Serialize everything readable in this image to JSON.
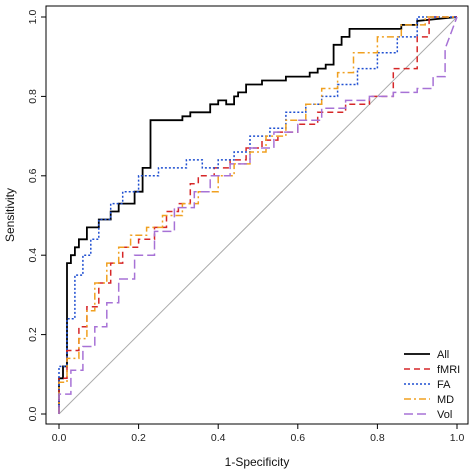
{
  "chart_data": {
    "type": "line",
    "title": "",
    "xlabel": "1-Specificity",
    "ylabel": "Sensitivity",
    "xlim": [
      0.0,
      1.0
    ],
    "ylim": [
      0.0,
      1.0
    ],
    "xticks": [
      "0.0",
      "0.2",
      "0.4",
      "0.6",
      "0.8",
      "1.0"
    ],
    "yticks": [
      "0.0",
      "0.2",
      "0.4",
      "0.6",
      "0.8",
      "1.0"
    ],
    "grid": false,
    "legend_position": "bottom-right",
    "reference_line": {
      "x": [
        0,
        1
      ],
      "y": [
        0,
        1
      ],
      "color": "#aaaaaa"
    },
    "series": [
      {
        "name": "All",
        "color": "#000000",
        "dash": "solid",
        "x": [
          0.0,
          0.0,
          0.01,
          0.01,
          0.02,
          0.02,
          0.03,
          0.03,
          0.04,
          0.04,
          0.05,
          0.05,
          0.07,
          0.07,
          0.1,
          0.1,
          0.13,
          0.13,
          0.15,
          0.15,
          0.19,
          0.19,
          0.21,
          0.21,
          0.23,
          0.23,
          0.31,
          0.31,
          0.33,
          0.33,
          0.38,
          0.38,
          0.4,
          0.4,
          0.42,
          0.42,
          0.44,
          0.44,
          0.45,
          0.45,
          0.47,
          0.47,
          0.51,
          0.51,
          0.57,
          0.57,
          0.63,
          0.63,
          0.65,
          0.65,
          0.67,
          0.67,
          0.69,
          0.69,
          0.71,
          0.71,
          0.73,
          0.73,
          0.77,
          0.77,
          0.86,
          0.86,
          0.9,
          0.9,
          1.0
        ],
        "y": [
          0.0,
          0.09,
          0.09,
          0.12,
          0.12,
          0.38,
          0.38,
          0.4,
          0.4,
          0.42,
          0.42,
          0.44,
          0.44,
          0.47,
          0.47,
          0.49,
          0.49,
          0.51,
          0.51,
          0.53,
          0.53,
          0.56,
          0.56,
          0.62,
          0.62,
          0.74,
          0.74,
          0.75,
          0.75,
          0.76,
          0.76,
          0.78,
          0.78,
          0.79,
          0.79,
          0.78,
          0.78,
          0.8,
          0.8,
          0.81,
          0.81,
          0.83,
          0.83,
          0.84,
          0.84,
          0.85,
          0.85,
          0.86,
          0.86,
          0.87,
          0.87,
          0.88,
          0.88,
          0.93,
          0.93,
          0.95,
          0.95,
          0.97,
          0.97,
          0.97,
          0.97,
          0.98,
          0.98,
          0.99,
          1.0
        ]
      },
      {
        "name": "fMRI",
        "color": "#d62728",
        "dash": "6,4",
        "x": [
          0.0,
          0.0,
          0.02,
          0.02,
          0.05,
          0.05,
          0.07,
          0.07,
          0.1,
          0.1,
          0.13,
          0.13,
          0.16,
          0.16,
          0.2,
          0.2,
          0.24,
          0.24,
          0.27,
          0.27,
          0.3,
          0.3,
          0.33,
          0.33,
          0.35,
          0.35,
          0.39,
          0.39,
          0.43,
          0.43,
          0.47,
          0.47,
          0.51,
          0.51,
          0.55,
          0.55,
          0.6,
          0.6,
          0.65,
          0.65,
          0.72,
          0.72,
          0.78,
          0.78,
          0.84,
          0.84,
          0.9,
          0.9,
          0.93,
          0.93,
          1.0
        ],
        "y": [
          0.0,
          0.09,
          0.09,
          0.16,
          0.16,
          0.22,
          0.22,
          0.27,
          0.27,
          0.33,
          0.33,
          0.38,
          0.38,
          0.42,
          0.42,
          0.44,
          0.44,
          0.47,
          0.47,
          0.51,
          0.51,
          0.53,
          0.53,
          0.58,
          0.58,
          0.6,
          0.6,
          0.62,
          0.62,
          0.64,
          0.64,
          0.67,
          0.67,
          0.69,
          0.69,
          0.71,
          0.71,
          0.73,
          0.73,
          0.76,
          0.76,
          0.78,
          0.78,
          0.8,
          0.8,
          0.87,
          0.87,
          0.95,
          0.95,
          1.0,
          1.0
        ]
      },
      {
        "name": "FA",
        "color": "#1f4fd1",
        "dash": "2,2",
        "x": [
          0.0,
          0.0,
          0.02,
          0.02,
          0.04,
          0.04,
          0.06,
          0.06,
          0.08,
          0.08,
          0.1,
          0.1,
          0.13,
          0.13,
          0.16,
          0.16,
          0.2,
          0.2,
          0.25,
          0.25,
          0.32,
          0.32,
          0.36,
          0.36,
          0.4,
          0.4,
          0.44,
          0.44,
          0.48,
          0.48,
          0.53,
          0.53,
          0.57,
          0.57,
          0.62,
          0.62,
          0.66,
          0.66,
          0.7,
          0.7,
          0.75,
          0.75,
          0.8,
          0.8,
          0.85,
          0.85,
          0.9,
          0.9,
          1.0
        ],
        "y": [
          0.0,
          0.12,
          0.12,
          0.24,
          0.24,
          0.35,
          0.35,
          0.4,
          0.4,
          0.44,
          0.44,
          0.49,
          0.49,
          0.53,
          0.53,
          0.56,
          0.56,
          0.6,
          0.6,
          0.62,
          0.62,
          0.64,
          0.64,
          0.62,
          0.62,
          0.64,
          0.64,
          0.66,
          0.66,
          0.7,
          0.7,
          0.72,
          0.72,
          0.76,
          0.76,
          0.78,
          0.78,
          0.8,
          0.8,
          0.83,
          0.83,
          0.87,
          0.87,
          0.91,
          0.91,
          0.95,
          0.95,
          1.0,
          1.0
        ]
      },
      {
        "name": "MD",
        "color": "#f0a020",
        "dash": "7,3,2,3",
        "x": [
          0.0,
          0.0,
          0.02,
          0.02,
          0.05,
          0.05,
          0.07,
          0.07,
          0.09,
          0.09,
          0.12,
          0.12,
          0.15,
          0.15,
          0.18,
          0.18,
          0.22,
          0.22,
          0.26,
          0.26,
          0.31,
          0.31,
          0.35,
          0.35,
          0.4,
          0.4,
          0.44,
          0.44,
          0.48,
          0.48,
          0.52,
          0.52,
          0.57,
          0.57,
          0.62,
          0.62,
          0.66,
          0.66,
          0.7,
          0.7,
          0.74,
          0.74,
          0.8,
          0.8,
          0.86,
          0.86,
          0.92,
          0.92,
          1.0
        ],
        "y": [
          0.0,
          0.08,
          0.08,
          0.14,
          0.14,
          0.19,
          0.19,
          0.26,
          0.26,
          0.33,
          0.33,
          0.38,
          0.38,
          0.42,
          0.42,
          0.45,
          0.45,
          0.47,
          0.47,
          0.5,
          0.5,
          0.53,
          0.53,
          0.56,
          0.56,
          0.6,
          0.6,
          0.63,
          0.63,
          0.66,
          0.66,
          0.7,
          0.7,
          0.74,
          0.74,
          0.78,
          0.78,
          0.82,
          0.82,
          0.86,
          0.86,
          0.91,
          0.91,
          0.95,
          0.95,
          0.98,
          0.98,
          1.0,
          1.0
        ]
      },
      {
        "name": "Vol",
        "color": "#a772d6",
        "dash": "9,4",
        "x": [
          0.0,
          0.0,
          0.03,
          0.03,
          0.06,
          0.06,
          0.09,
          0.09,
          0.12,
          0.12,
          0.15,
          0.15,
          0.19,
          0.19,
          0.24,
          0.24,
          0.29,
          0.29,
          0.34,
          0.34,
          0.38,
          0.38,
          0.43,
          0.43,
          0.48,
          0.48,
          0.54,
          0.54,
          0.6,
          0.6,
          0.66,
          0.66,
          0.72,
          0.72,
          0.78,
          0.78,
          0.84,
          0.84,
          0.9,
          0.9,
          0.94,
          0.94,
          0.97,
          0.97,
          1.0
        ],
        "y": [
          0.0,
          0.05,
          0.05,
          0.11,
          0.11,
          0.17,
          0.17,
          0.22,
          0.22,
          0.28,
          0.28,
          0.34,
          0.34,
          0.4,
          0.4,
          0.46,
          0.46,
          0.52,
          0.52,
          0.56,
          0.56,
          0.6,
          0.6,
          0.63,
          0.63,
          0.67,
          0.67,
          0.71,
          0.71,
          0.74,
          0.74,
          0.77,
          0.77,
          0.79,
          0.79,
          0.8,
          0.8,
          0.81,
          0.81,
          0.82,
          0.82,
          0.85,
          0.85,
          0.92,
          1.0
        ]
      }
    ]
  }
}
